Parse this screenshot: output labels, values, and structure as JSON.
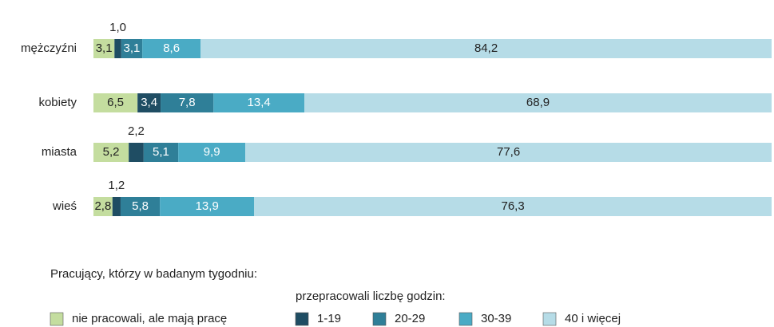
{
  "chart_data": {
    "type": "stacked_barh",
    "categories": [
      "mężczyźni",
      "kobiety",
      "miasta",
      "wieś"
    ],
    "xlim": [
      0,
      100
    ],
    "legend_title": "Pracujący, którzy w badanym tygodniu:",
    "legend_subtitle": "przepracowali liczbę godzin:",
    "series": [
      {
        "name": "nie pracowali, ale mają pracę",
        "color": "#c4dd9f",
        "values": [
          3.1,
          6.5,
          5.2,
          2.8
        ],
        "value_labels": [
          "3,1",
          "6,5",
          "5,2",
          "2,8"
        ]
      },
      {
        "name": "1-19",
        "color": "#1f4d63",
        "values": [
          1.0,
          3.4,
          2.2,
          1.2
        ],
        "value_labels": [
          "1,0",
          "3,4",
          "2,2",
          "1,2"
        ]
      },
      {
        "name": "20-29",
        "color": "#2f7f98",
        "values": [
          3.1,
          7.8,
          5.1,
          5.8
        ],
        "value_labels": [
          "3,1",
          "7,8",
          "5,1",
          "5,8"
        ]
      },
      {
        "name": "30-39",
        "color": "#4aabc5",
        "values": [
          8.6,
          13.4,
          9.9,
          13.9
        ],
        "value_labels": [
          "8,6",
          "13,4",
          "9,9",
          "13,9"
        ]
      },
      {
        "name": "40 i więcej",
        "color": "#b6dce7",
        "values": [
          84.2,
          68.9,
          77.6,
          76.3
        ],
        "value_labels": [
          "84,2",
          "68,9",
          "77,6",
          "76,3"
        ]
      }
    ]
  }
}
